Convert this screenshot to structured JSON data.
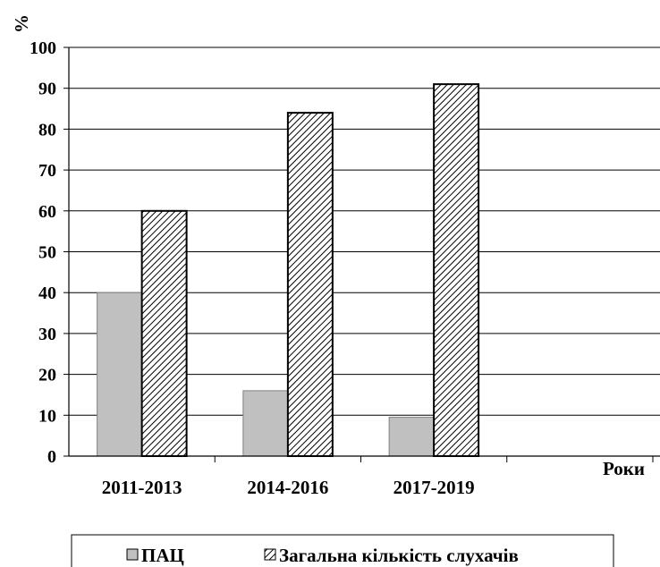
{
  "chart_data": {
    "type": "bar",
    "categories": [
      "2011-2013",
      "2014-2016",
      "2017-2019"
    ],
    "series": [
      {
        "name": "ПАЦ",
        "values": [
          40,
          16,
          9.5
        ],
        "fill": "#c0c0c0",
        "pattern": "solid"
      },
      {
        "name": "Загальна кількість слухачів",
        "values": [
          60,
          84,
          91
        ],
        "fill": "#ffffff",
        "pattern": "diagonal-hatch"
      }
    ],
    "title": "",
    "xlabel": "Роки",
    "ylabel": "%",
    "ylim": [
      0,
      100
    ],
    "yticks": [
      0,
      10,
      20,
      30,
      40,
      50,
      60,
      70,
      80,
      90,
      100
    ],
    "grid": true,
    "legend_position": "bottom"
  }
}
